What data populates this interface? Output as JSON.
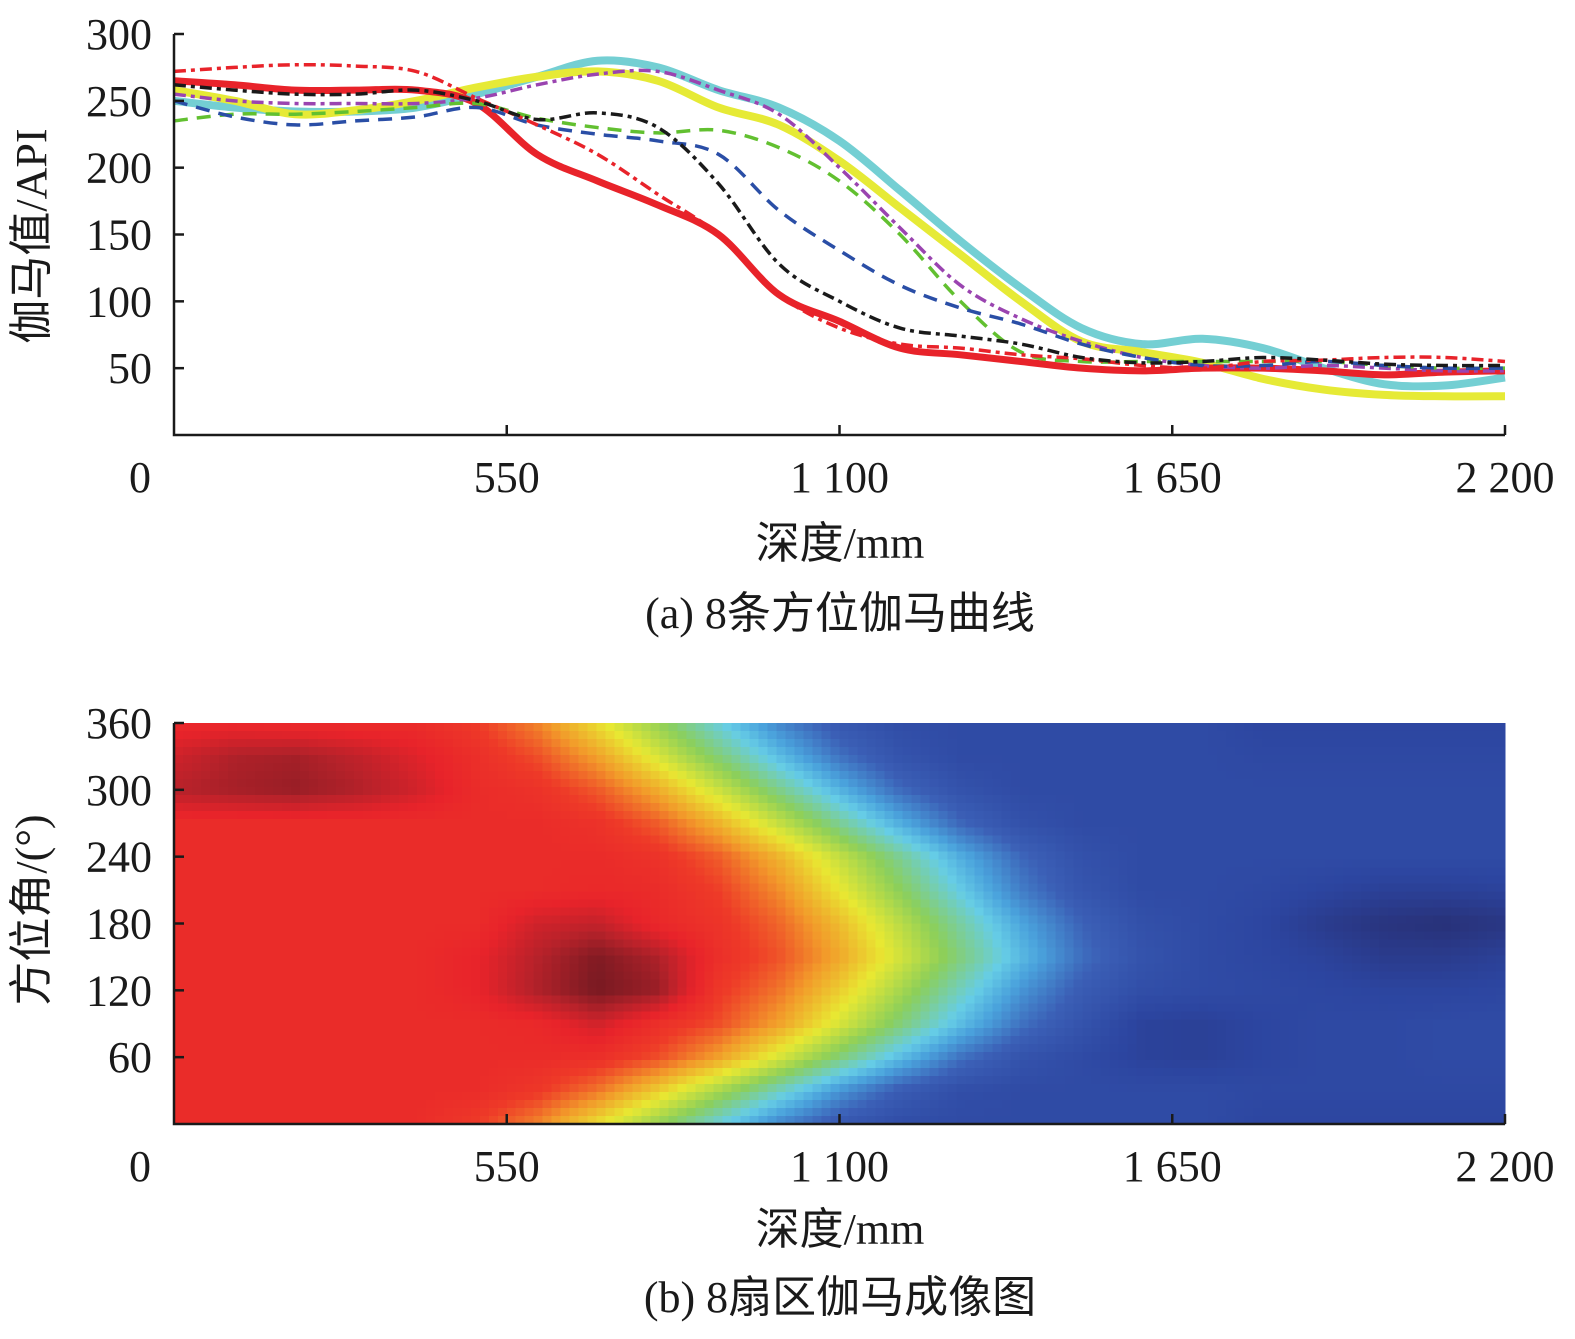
{
  "chart_data": [
    {
      "type": "line",
      "caption": "(a) 8条方位伽马曲线",
      "xlabel": "深度/mm",
      "ylabel": "伽马值/API",
      "xlim": [
        0,
        2200
      ],
      "ylim": [
        0,
        300
      ],
      "xticks": [
        0,
        550,
        1100,
        1650,
        2200
      ],
      "xtick_labels": [
        "0",
        "550",
        "1 100",
        "1 650",
        "2 200"
      ],
      "yticks": [
        50,
        100,
        150,
        200,
        250,
        300
      ],
      "ytick_labels": [
        "50",
        "100",
        "150",
        "200",
        "250",
        "300"
      ],
      "grid": false,
      "x": [
        0,
        100,
        200,
        300,
        400,
        500,
        600,
        700,
        800,
        900,
        1000,
        1100,
        1200,
        1300,
        1400,
        1500,
        1600,
        1700,
        1800,
        1900,
        2000,
        2100,
        2200
      ],
      "series": [
        {
          "color": "#74cfd3",
          "style": "solid-thick",
          "values": [
            250,
            245,
            242,
            242,
            245,
            255,
            268,
            280,
            275,
            258,
            245,
            220,
            183,
            145,
            110,
            80,
            68,
            72,
            65,
            50,
            38,
            37,
            43
          ]
        },
        {
          "color": "#e6ea36",
          "style": "solid-thick",
          "values": [
            258,
            250,
            240,
            243,
            250,
            260,
            268,
            272,
            265,
            245,
            232,
            205,
            170,
            135,
            100,
            70,
            62,
            54,
            42,
            34,
            30,
            29,
            29
          ]
        },
        {
          "color": "#e8232a",
          "style": "solid-thick",
          "values": [
            265,
            262,
            258,
            258,
            258,
            248,
            210,
            190,
            172,
            150,
            105,
            85,
            65,
            60,
            55,
            50,
            48,
            50,
            50,
            48,
            45,
            47,
            48
          ]
        },
        {
          "color": "#9a44b0",
          "style": "dash-dot",
          "values": [
            255,
            250,
            248,
            248,
            248,
            252,
            262,
            270,
            272,
            258,
            240,
            200,
            155,
            112,
            87,
            70,
            58,
            52,
            50,
            52,
            50,
            48,
            48
          ]
        },
        {
          "color": "#62c030",
          "style": "dashed",
          "values": [
            235,
            240,
            240,
            242,
            245,
            248,
            237,
            230,
            226,
            228,
            215,
            190,
            150,
            100,
            62,
            55,
            55,
            55,
            55,
            55,
            52,
            50,
            50
          ]
        },
        {
          "color": "#2a4ea6",
          "style": "dashed",
          "values": [
            250,
            238,
            232,
            235,
            238,
            245,
            232,
            225,
            220,
            210,
            168,
            138,
            112,
            95,
            83,
            68,
            58,
            52,
            52,
            55,
            52,
            50,
            50
          ]
        },
        {
          "color": "#e8232a",
          "style": "dash-dot",
          "values": [
            272,
            275,
            277,
            276,
            272,
            252,
            232,
            210,
            180,
            150,
            105,
            80,
            68,
            65,
            60,
            57,
            52,
            50,
            55,
            56,
            58,
            58,
            55
          ]
        },
        {
          "color": "#1a1a1a",
          "style": "dash-dot",
          "values": [
            262,
            258,
            255,
            255,
            258,
            250,
            236,
            241,
            230,
            188,
            128,
            100,
            80,
            74,
            68,
            58,
            54,
            55,
            58,
            56,
            53,
            52,
            52
          ]
        }
      ]
    },
    {
      "type": "heatmap",
      "caption": "(b) 8扇区伽马成像图",
      "xlabel": "深度/mm",
      "ylabel": "方位角/(°)",
      "xlim": [
        0,
        2200
      ],
      "ylim": [
        0,
        360
      ],
      "xticks": [
        0,
        550,
        1100,
        1650,
        2200
      ],
      "xtick_labels": [
        "0",
        "550",
        "1 100",
        "1 650",
        "2 200"
      ],
      "yticks": [
        60,
        120,
        180,
        240,
        300,
        360
      ],
      "ytick_labels": [
        "60",
        "120",
        "180",
        "240",
        "300",
        "360"
      ],
      "x": [
        0,
        100,
        200,
        300,
        400,
        500,
        600,
        700,
        800,
        900,
        1000,
        1100,
        1200,
        1300,
        1400,
        1500,
        1600,
        1700,
        1800,
        1900,
        2000,
        2100,
        2200
      ],
      "y": [
        0,
        30,
        60,
        90,
        120,
        150,
        180,
        210,
        240,
        270,
        300,
        330,
        360
      ],
      "value_range": [
        40,
        285
      ],
      "colormap": [
        [
          0.0,
          "#272c6e"
        ],
        [
          0.1,
          "#2c45a0"
        ],
        [
          0.2,
          "#3b5fb6"
        ],
        [
          0.3,
          "#4aa2dc"
        ],
        [
          0.37,
          "#66cde6"
        ],
        [
          0.49,
          "#8ccf5a"
        ],
        [
          0.61,
          "#e8e832"
        ],
        [
          0.72,
          "#f29a2a"
        ],
        [
          0.82,
          "#ee3a28"
        ],
        [
          0.88,
          "#e8232a"
        ],
        [
          0.93,
          "#b8222a"
        ],
        [
          1.0,
          "#6a1820"
        ]
      ],
      "z": [
        [
          250,
          250,
          250,
          250,
          250,
          241,
          222,
          193,
          163,
          133,
          103,
          82,
          72,
          70,
          70,
          70,
          70,
          70,
          65,
          65,
          65,
          65,
          65
        ],
        [
          250,
          250,
          250,
          250,
          250,
          250,
          243,
          226,
          199,
          169,
          139,
          109,
          86,
          73,
          70,
          70,
          70,
          70,
          68,
          68,
          68,
          68,
          68
        ],
        [
          250,
          250,
          250,
          250,
          250,
          250,
          250,
          248,
          236,
          214,
          184,
          154,
          124,
          96,
          78,
          70,
          62,
          60,
          65,
          68,
          68,
          70,
          70
        ],
        [
          250,
          250,
          250,
          250,
          250,
          250,
          252,
          262,
          248,
          236,
          214,
          184,
          154,
          124,
          96,
          78,
          62,
          60,
          65,
          68,
          68,
          70,
          70
        ],
        [
          250,
          250,
          250,
          250,
          250,
          255,
          270,
          282,
          275,
          243,
          226,
          199,
          169,
          139,
          109,
          86,
          73,
          70,
          68,
          66,
          64,
          64,
          66
        ],
        [
          250,
          250,
          250,
          250,
          250,
          255,
          268,
          280,
          270,
          248,
          235,
          212,
          183,
          153,
          123,
          95,
          78,
          70,
          66,
          62,
          55,
          55,
          60
        ],
        [
          250,
          250,
          250,
          250,
          250,
          250,
          262,
          265,
          252,
          245,
          230,
          205,
          175,
          145,
          115,
          90,
          75,
          70,
          65,
          55,
          48,
          45,
          50
        ],
        [
          250,
          250,
          250,
          250,
          250,
          250,
          250,
          252,
          250,
          240,
          220,
          190,
          160,
          130,
          100,
          80,
          70,
          70,
          68,
          64,
          60,
          60,
          62
        ],
        [
          250,
          250,
          250,
          250,
          250,
          250,
          250,
          250,
          246,
          232,
          208,
          178,
          148,
          118,
          92,
          76,
          70,
          70,
          70,
          70,
          70,
          70,
          70
        ],
        [
          250,
          250,
          250,
          250,
          250,
          250,
          250,
          246,
          232,
          208,
          178,
          148,
          118,
          92,
          76,
          70,
          70,
          70,
          70,
          70,
          70,
          70,
          70
        ],
        [
          268,
          272,
          275,
          270,
          262,
          250,
          246,
          233,
          210,
          180,
          150,
          120,
          93,
          77,
          70,
          70,
          70,
          70,
          70,
          70,
          70,
          70,
          70
        ],
        [
          262,
          270,
          272,
          266,
          258,
          248,
          236,
          214,
          184,
          154,
          124,
          96,
          78,
          70,
          70,
          70,
          70,
          70,
          68,
          68,
          68,
          68,
          68
        ],
        [
          252,
          252,
          250,
          250,
          250,
          241,
          222,
          193,
          163,
          133,
          103,
          82,
          72,
          70,
          70,
          70,
          70,
          70,
          65,
          65,
          65,
          65,
          65
        ]
      ]
    }
  ]
}
